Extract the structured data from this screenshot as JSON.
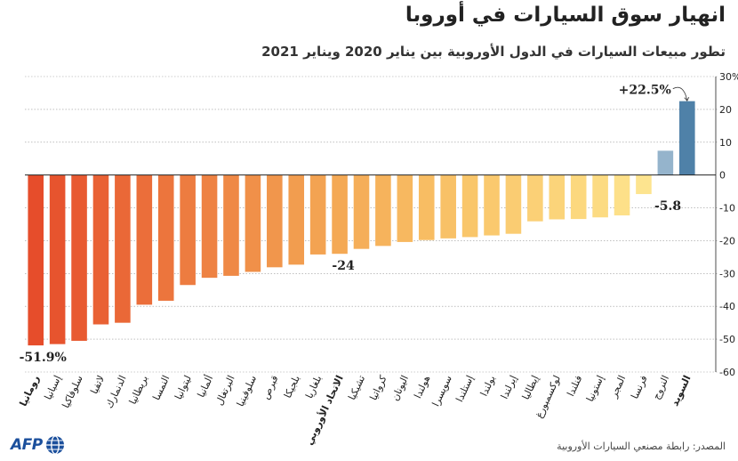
{
  "chart_data": {
    "type": "bar",
    "title": "انهيار سوق السيارات في أوروبا",
    "subtitle": "تطور مبيعات السيارات في الدول الأوروبية بين يناير 2020 ويناير 2021",
    "ylim": [
      -60,
      30
    ],
    "yticks": [
      30,
      20,
      10,
      0,
      -10,
      -20,
      -30,
      -40,
      -50,
      -60
    ],
    "ytick_labels": [
      "30%",
      "20",
      "10",
      "0",
      "-10",
      "-20",
      "-30",
      "-40",
      "-50",
      "-60"
    ],
    "categories": [
      "رومانيا",
      "إسبانيا",
      "سلوفاكيا",
      "لاتفيا",
      "الدنمارك",
      "بريطانيا",
      "النمسا",
      "ليتوانيا",
      "ألمانيا",
      "البرتغال",
      "سلوفينيا",
      "قبرص",
      "بلجيكا",
      "بلغاريا",
      "الاتحاد الأوروبي",
      "تشيكيا",
      "كرواتيا",
      "اليونان",
      "هولندا",
      "سويسرا",
      "إستلندا",
      "بولندا",
      "إيرلندا",
      "إيطاليا",
      "لوكسمبورغ",
      "فنلندا",
      "إستونيا",
      "المجر",
      "فرنسا",
      "النروج",
      "السويد"
    ],
    "bold_categories": [
      "رومانيا",
      "الاتحاد الأوروبي",
      "السويد"
    ],
    "values": [
      -51.9,
      -51.5,
      -50.5,
      -45.5,
      -45,
      -39.5,
      -38.3,
      -33.5,
      -31.3,
      -30.7,
      -29.5,
      -28.1,
      -27.3,
      -24.2,
      -24,
      -22.5,
      -21.6,
      -20.4,
      -19.8,
      -19.3,
      -18.9,
      -18.4,
      -17.9,
      -14.1,
      -13.5,
      -13.4,
      -12.9,
      -12.3,
      -5.8,
      7.4,
      22.5
    ],
    "colors": [
      "#e64d2b",
      "#e7542e",
      "#e85a31",
      "#e96134",
      "#ea6837",
      "#eb6e3a",
      "#ec753d",
      "#ed7c40",
      "#ee8243",
      "#ef8946",
      "#f09049",
      "#f1964c",
      "#f29d4f",
      "#f3a352",
      "#f4a955",
      "#f5ae59",
      "#f6b35c",
      "#f7b860",
      "#f8bd63",
      "#f8c167",
      "#f9c66a",
      "#fac96e",
      "#facc72",
      "#fbd076",
      "#fbd47a",
      "#fcd87e",
      "#fcdb82",
      "#fde089",
      "#fde48f",
      "#95b4cc",
      "#4f81a8"
    ],
    "data_labels": [
      {
        "index": 0,
        "text": "-51.9%"
      },
      {
        "index": 14,
        "text": "-24"
      },
      {
        "index": 28,
        "text": "-5.8"
      },
      {
        "index": 30,
        "text": "+22.5%"
      }
    ],
    "xlabel": "",
    "ylabel": ""
  },
  "footer": {
    "source": "المصدر: رابطة مصنعي السيارات الأوروبية",
    "logo": "AFP"
  }
}
